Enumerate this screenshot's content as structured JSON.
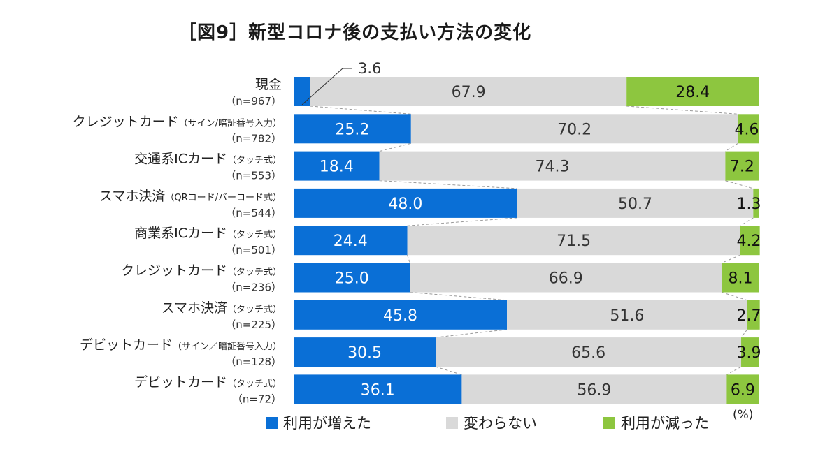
{
  "chart_data": {
    "type": "bar",
    "stacked": true,
    "orientation": "horizontal",
    "title": "［図9］新型コロナ後の支払い方法の変化",
    "unit": "(%)",
    "categories": [
      {
        "name": "現金",
        "sub": "",
        "n": "（n=967）"
      },
      {
        "name": "クレジットカード",
        "sub": "（サイン/暗証番号入力）",
        "n": "（n=782）"
      },
      {
        "name": "交通系ICカード",
        "sub": "（タッチ式）",
        "n": "（n=553）"
      },
      {
        "name": "スマホ決済",
        "sub": "（QRコード/バーコード式）",
        "n": "（n=544）"
      },
      {
        "name": "商業系ICカード",
        "sub": "（タッチ式）",
        "n": "（n=501）"
      },
      {
        "name": "クレジットカード",
        "sub": "（タッチ式）",
        "n": "（n=236）"
      },
      {
        "name": "スマホ決済",
        "sub": "（タッチ式）",
        "n": "（n=225）"
      },
      {
        "name": "デビットカード",
        "sub": "（サイン／暗証番号入力）",
        "n": "（n=128）"
      },
      {
        "name": "デビットカード",
        "sub": "（タッチ式）",
        "n": "（n=72）"
      }
    ],
    "series": [
      {
        "name": "利用が増えた",
        "color": "#0a6fd6",
        "values": [
          3.6,
          25.2,
          18.4,
          48.0,
          24.4,
          25.0,
          45.8,
          30.5,
          36.1
        ]
      },
      {
        "name": "変わらない",
        "color": "#d9d9d9",
        "values": [
          67.9,
          70.2,
          74.3,
          50.7,
          71.5,
          66.9,
          51.6,
          65.6,
          56.9
        ]
      },
      {
        "name": "利用が減った",
        "color": "#8dc63f",
        "values": [
          28.4,
          4.6,
          7.2,
          1.3,
          4.2,
          8.1,
          2.7,
          3.9,
          6.9
        ]
      }
    ],
    "xlim": [
      0,
      100
    ],
    "grid": false,
    "legend": "bottom"
  }
}
